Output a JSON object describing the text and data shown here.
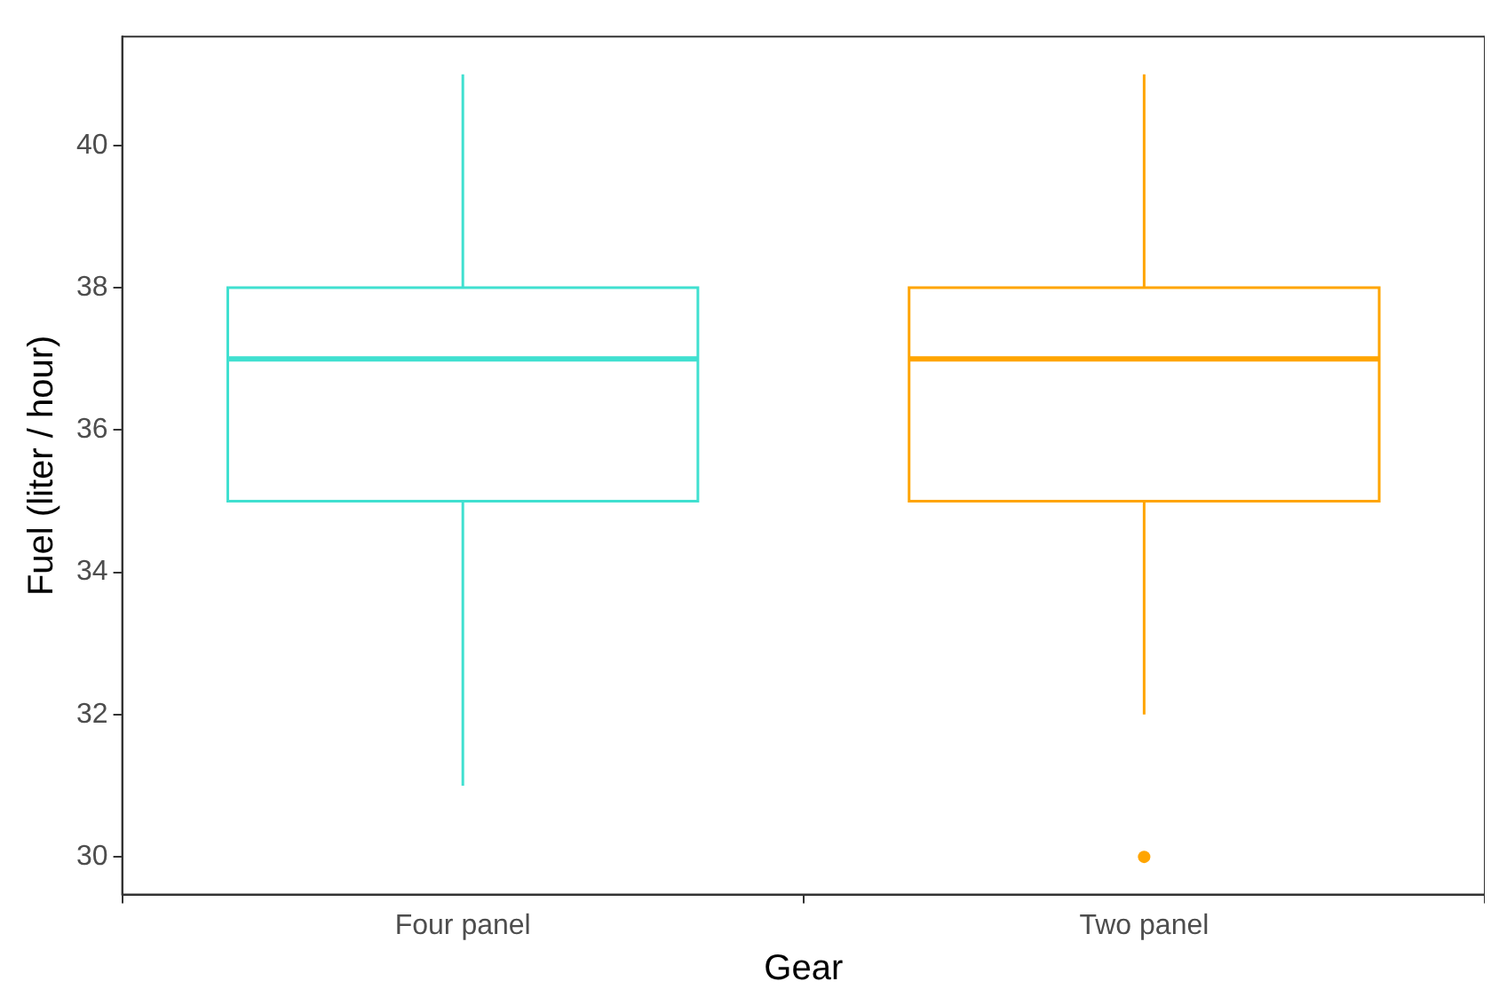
{
  "chart_data": {
    "type": "box",
    "xlabel": "Gear",
    "ylabel": "Fuel (liter / hour)",
    "categories": [
      "Four panel",
      "Two panel"
    ],
    "colors": [
      "#40e0d0",
      "#ffa500"
    ],
    "boxes": [
      {
        "low": 31,
        "q1": 35,
        "median": 37,
        "q3": 38,
        "high": 41
      },
      {
        "low": 32,
        "q1": 35,
        "median": 37,
        "q3": 38,
        "high": 41,
        "outliers": [
          30
        ]
      }
    ],
    "ylim": [
      29.47,
      41.53
    ],
    "yticks": [
      30,
      32,
      34,
      36,
      38,
      40
    ],
    "grid": false,
    "legend": false
  }
}
